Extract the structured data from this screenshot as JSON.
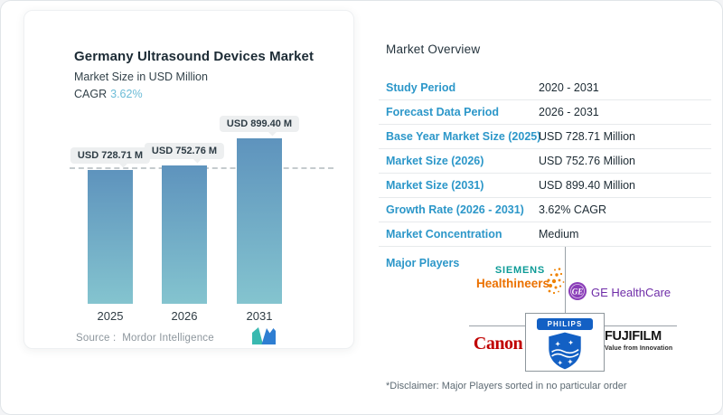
{
  "card": {
    "title": "Germany Ultrasound Devices Market",
    "subtitle": "Market Size in USD Million",
    "cagr_label": "CAGR",
    "cagr_value": "3.62%",
    "source_prefix": "Source :",
    "source_name": "Mordor Intelligence"
  },
  "chart_data": {
    "type": "bar",
    "title": "Germany Ultrasound Devices Market",
    "ylabel": "Market Size in USD Million",
    "unit": "USD Million",
    "cagr": "3.62%",
    "categories": [
      "2025",
      "2026",
      "2031"
    ],
    "values": [
      728.71,
      752.76,
      899.4
    ],
    "bar_labels": [
      "USD 728.71 M",
      "USD 752.76 M",
      "USD 899.40 M"
    ],
    "reference_line_value": 728.71,
    "grid": false,
    "legend": false,
    "bar_color_top": "#5e93bd",
    "bar_color_bottom": "#84c4cf"
  },
  "overview": {
    "heading": "Market Overview",
    "rows": [
      {
        "label": "Study Period",
        "value": "2020 - 2031"
      },
      {
        "label": "Forecast Data Period",
        "value": "2026 - 2031"
      },
      {
        "label": "Base Year Market Size (2025)",
        "value": "USD 728.71 Million"
      },
      {
        "label": "Market Size (2026)",
        "value": "USD 752.76 Million"
      },
      {
        "label": "Market Size (2031)",
        "value": "USD 899.40 Million"
      },
      {
        "label": "Growth Rate (2026 - 2031)",
        "value": "3.62% CAGR"
      },
      {
        "label": "Market Concentration",
        "value": "Medium"
      }
    ],
    "major_players_label": "Major Players",
    "players": {
      "siemens": {
        "line1": "SIEMENS",
        "line2": "Healthineers"
      },
      "ge": {
        "monogram": "GE",
        "name": "GE HealthCare"
      },
      "canon": {
        "name": "Canon"
      },
      "philips": {
        "name": "PHILIPS"
      },
      "fujifilm": {
        "name": "FUJIFILM",
        "tagline": "Value from Innovation"
      }
    },
    "disclaimer": "*Disclaimer: Major Players sorted in no particular order"
  },
  "colors": {
    "label_blue": "#2c97c9",
    "cagr_value_blue": "#6cbcd7",
    "siemens_teal": "#0d9b97",
    "healthineers_orange": "#eb7100",
    "ge_purple": "#6f2da8",
    "canon_red": "#c00000",
    "philips_blue": "#1360c4",
    "fujifilm_black": "#151515",
    "mi_logo_teal": "#39b9b0",
    "mi_logo_blue": "#2e7ed2"
  }
}
